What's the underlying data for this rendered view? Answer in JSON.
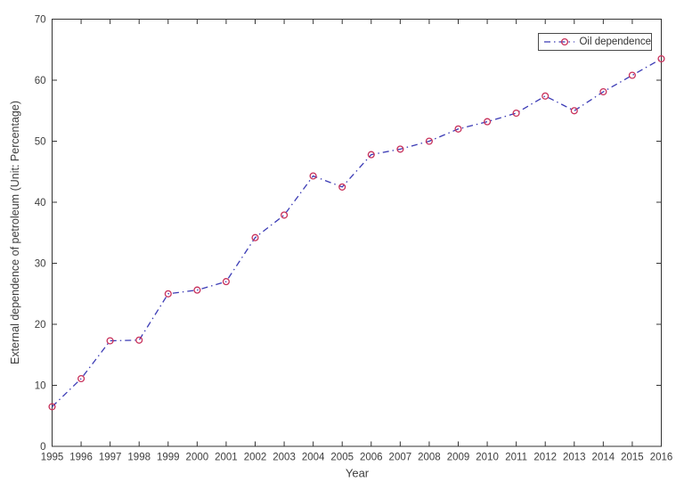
{
  "chart_data": {
    "type": "line",
    "title": "",
    "xlabel": "Year",
    "ylabel": "External dependence of petroleum (Unit: Percentage)",
    "legend_position": "top-right-inside",
    "grid": false,
    "box": true,
    "xlim": [
      1995,
      2016
    ],
    "ylim": [
      0,
      70
    ],
    "yticks": [
      0,
      10,
      20,
      30,
      40,
      50,
      60,
      70
    ],
    "x": [
      1995,
      1996,
      1997,
      1998,
      1999,
      2000,
      2001,
      2002,
      2003,
      2004,
      2005,
      2006,
      2007,
      2008,
      2009,
      2010,
      2011,
      2012,
      2013,
      2014,
      2015,
      2016
    ],
    "series": [
      {
        "name": "Oil dependence",
        "line_style": "dash-dot",
        "marker": "open-circle",
        "line_color": "#3b3bb5",
        "marker_color": "#c8305a",
        "values": [
          6.5,
          11.1,
          17.3,
          17.4,
          25.0,
          25.6,
          27.0,
          34.2,
          37.9,
          44.3,
          42.5,
          47.8,
          48.7,
          50.0,
          52.0,
          53.2,
          54.6,
          57.4,
          55.0,
          58.1,
          60.8,
          63.5
        ]
      }
    ],
    "axis_color": "#333333",
    "tick_label_color": "#3d3d3d",
    "background_color": "#ffffff"
  }
}
